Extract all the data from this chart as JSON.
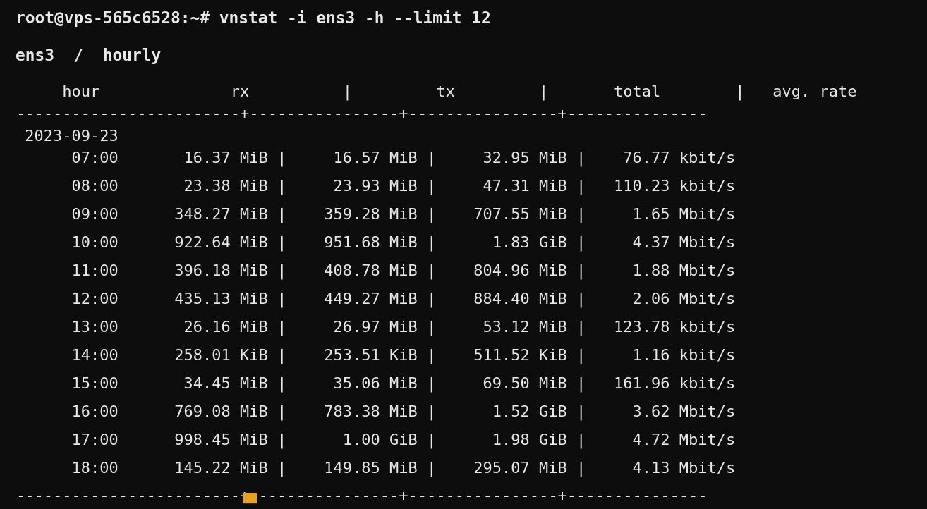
{
  "bg_color": "#0d0d0d",
  "text_color": "#e8e8e8",
  "font_family": "monospace",
  "title_line": "root@vps-565c6528:~# vnstat -i ens3 -h --limit 12",
  "subtitle": "ens3  /  hourly",
  "header": "     hour              rx          |        tx         |       total       |   avg. rate",
  "separator": "------------------------+----------------+----------------+---------------",
  "date_line": " 2023-09-23",
  "rows": [
    "      07:00       16.37 MiB |     16.57 MiB |     32.95 MiB |    76.77 kbit/s",
    "      08:00       23.38 MiB |     23.93 MiB |     47.31 MiB |   110.23 kbit/s",
    "      09:00      348.27 MiB |    359.28 MiB |    707.55 MiB |     1.65 Mbit/s",
    "      10:00      922.64 MiB |    951.68 MiB |      1.83 GiB |     4.37 Mbit/s",
    "      11:00      396.18 MiB |    408.78 MiB |    804.96 MiB |     1.88 Mbit/s",
    "      12:00      435.13 MiB |    449.27 MiB |    884.40 MiB |     2.06 Mbit/s",
    "      13:00       26.16 MiB |     26.97 MiB |     53.12 MiB |   123.78 kbit/s",
    "      14:00      258.01 KiB |    253.51 KiB |    511.52 KiB |     1.16 kbit/s",
    "      15:00       34.45 MiB |     35.06 MiB |     69.50 MiB |   161.96 kbit/s",
    "      16:00      769.08 MiB |    783.38 MiB |      1.52 GiB |     3.62 Mbit/s",
    "      17:00      998.45 MiB |      1.00 GiB |      1.98 GiB |     4.72 Mbit/s",
    "      18:00      145.22 MiB |    149.85 MiB |    295.07 MiB |     4.13 Mbit/s"
  ],
  "cursor_color": "#e8a020",
  "title_fontsize": 16.5,
  "body_fontsize": 15.8,
  "subtitle_fontsize": 16.5
}
